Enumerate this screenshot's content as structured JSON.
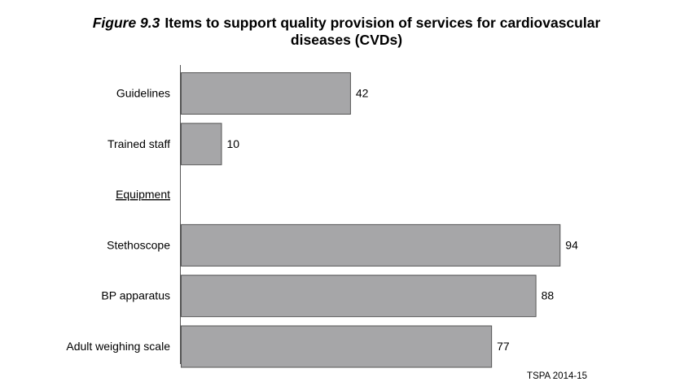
{
  "title": {
    "figure_label": "Figure 9.3",
    "text_line1": "Items to support quality provision of services for cardiovascular",
    "text_line2": "diseases (CVDs)"
  },
  "source": "TSPA 2014-15",
  "chart_data": {
    "type": "bar",
    "orientation": "horizontal",
    "categories": [
      "Guidelines",
      "Trained staff",
      "Equipment",
      "Stethoscope",
      "BP apparatus",
      "Adult weighing scale"
    ],
    "values": [
      42,
      10,
      null,
      94,
      88,
      77
    ],
    "section_headers": [
      "Equipment"
    ],
    "xlim": [
      0,
      100
    ],
    "grid": false,
    "legend": "none",
    "bar_color": "#a6a6a8",
    "bar_edge_color": "#555555"
  }
}
